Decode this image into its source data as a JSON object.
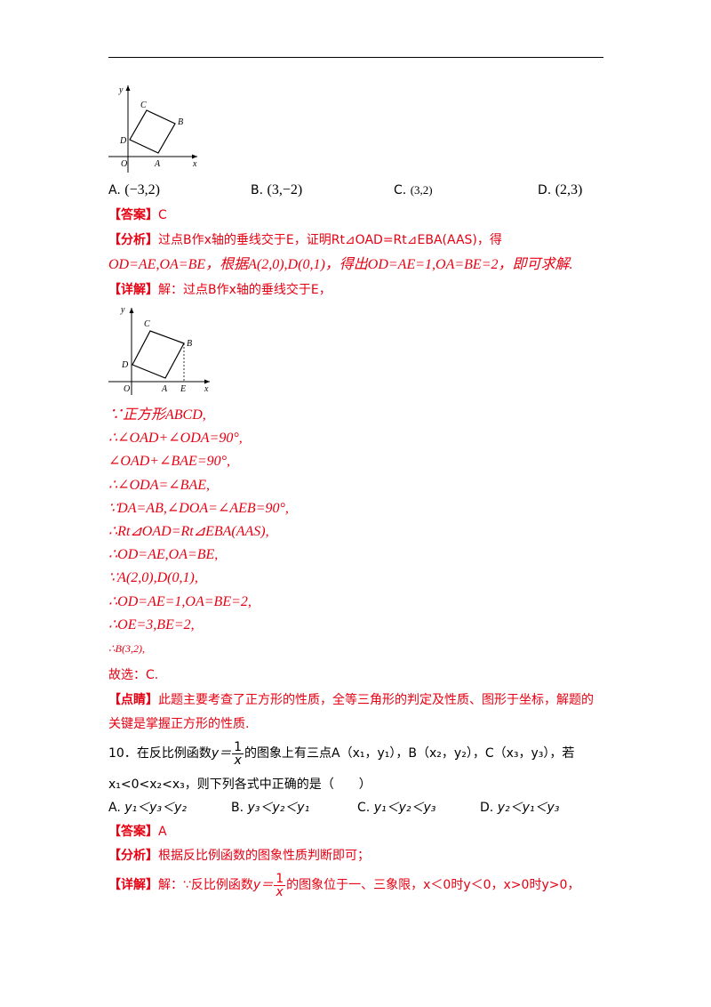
{
  "figure_labels": {
    "y": "y",
    "x": "x",
    "o": "O",
    "a": "A",
    "b": "B",
    "c": "C",
    "d": "D",
    "e": "E"
  },
  "q9": {
    "options": [
      {
        "letter": "A.",
        "value": "(−3,2)"
      },
      {
        "letter": "B.",
        "value": "(3,−2)"
      },
      {
        "letter": "C.",
        "value": "(3,2)"
      },
      {
        "letter": "D.",
        "value": "(2,3)"
      }
    ],
    "answer_tag": "【答案】",
    "answer": "C",
    "analysis_tag": "【分析】",
    "analysis_line1": "过点B作x轴的垂线交于E，证明Rt⊿OAD=Rt⊿EBA(AAS)，得",
    "analysis_line2": "OD=AE,OA=BE，根据A(2,0),D(0,1)，得出OD=AE=1,OA=BE=2，即可求解.",
    "detail_tag": "【详解】",
    "detail_intro": "解：过点B作x轴的垂线交于E，",
    "steps": [
      "∵正方形ABCD,",
      "∴∠OAD+∠ODA=90°,",
      "∠OAD+∠BAE=90°,",
      "∴∠ODA=∠BAE,",
      "∵DA=AB,∠DOA=∠AEB=90°,",
      "∴Rt⊿OAD=Rt⊿EBA(AAS),",
      "∴OD=AE,OA=BE,",
      "∵A(2,0),D(0,1),",
      "∴OD=AE=1,OA=BE=2,",
      "∴OE=3,BE=2,",
      "∴B(3,2),"
    ],
    "conclusion": "故选：C.",
    "comment_tag": "【点睛】",
    "comment_line1": "此题主要考查了正方形的性质，全等三角形的判定及性质、图形于坐标，解题的",
    "comment_line2": "关键是掌握正方形的性质."
  },
  "q10": {
    "line1_a": "10．在反比例函数",
    "y_eq": "y＝",
    "frac_num": "1",
    "frac_den": "x",
    "line1_b": "的图象上有三点A（x₁，y₁），B（x₂，y₂），C（x₃，y₃），若",
    "line2": "x₁<0<x₂<x₃，则下列各式中正确的是（　　）",
    "options": [
      {
        "letter": "A.",
        "value": "y₁＜y₃＜y₂"
      },
      {
        "letter": "B.",
        "value": "y₃＜y₂＜y₁"
      },
      {
        "letter": "C.",
        "value": "y₁＜y₂＜y₃"
      },
      {
        "letter": "D.",
        "value": "y₂＜y₁＜y₃"
      }
    ],
    "answer_tag": "【答案】",
    "answer": "A",
    "analysis_tag": "【分析】",
    "analysis": "根据反比例函数的图象性质判断即可；",
    "detail_tag": "【详解】",
    "detail_a": "解：∵反比例函数",
    "detail_b": "的图象位于一、三象限，x＜0时y＜0，x>0时y>0，"
  }
}
